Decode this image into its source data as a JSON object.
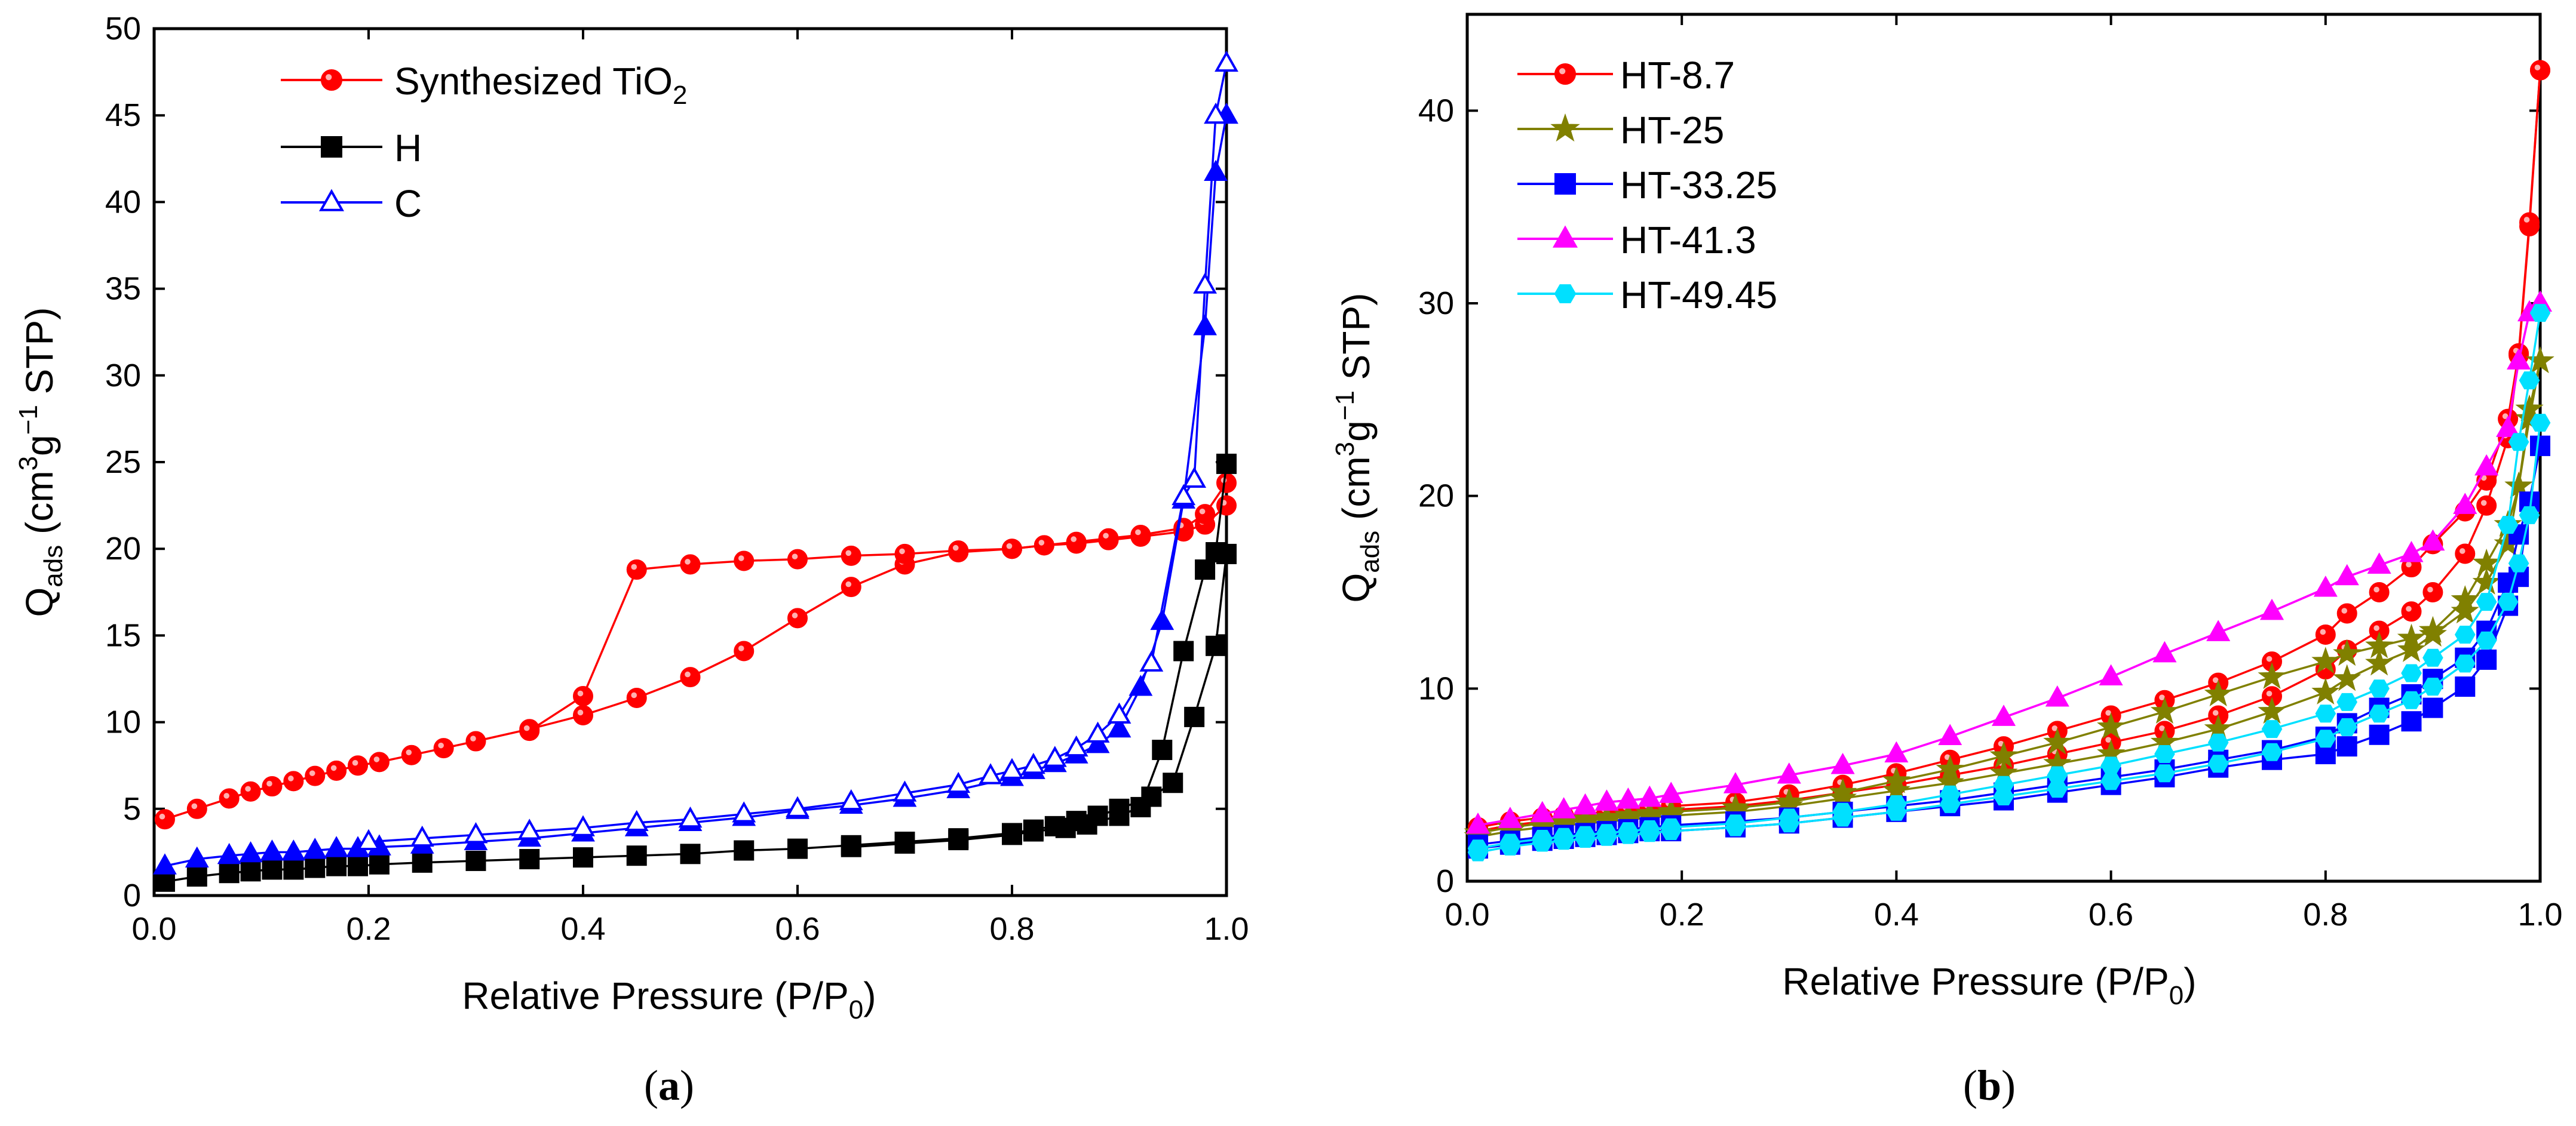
{
  "chart_data": [
    {
      "type": "line",
      "panel_label": "a",
      "xlabel": "Relative Pressure (P/P0)",
      "xlabel_main": "Relative Pressure (P/P",
      "xlabel_sub": "0",
      "xlabel_tail": ")",
      "ylabel": "Qads (cm3g−1 STP)",
      "ylabel_main": "Q",
      "ylabel_sub": "ads",
      "ylabel_mid": " (cm",
      "ylabel_sup1": "3",
      "ylabel_g": "g",
      "ylabel_sup2": "−1",
      "ylabel_tail": " STP)",
      "xlim": [
        0.0,
        1.0
      ],
      "ylim": [
        0,
        50
      ],
      "xticks": [
        "0.0",
        "0.2",
        "0.4",
        "0.6",
        "0.8",
        "1.0"
      ],
      "yticks": [
        "0",
        "5",
        "10",
        "15",
        "20",
        "25",
        "30",
        "35",
        "40",
        "45",
        "50"
      ],
      "legend_position": "top-left",
      "series": [
        {
          "name": "Synthesized TiO2",
          "legend_main": "Synthesized TiO",
          "legend_sub": "2",
          "color": "#ff0000",
          "marker": "circle",
          "adsorption": {
            "x": [
              0.01,
              0.04,
              0.07,
              0.09,
              0.11,
              0.13,
              0.15,
              0.17,
              0.19,
              0.21,
              0.24,
              0.27,
              0.3,
              0.35,
              0.4,
              0.45,
              0.5,
              0.55,
              0.6,
              0.65,
              0.7,
              0.75,
              0.8,
              0.83,
              0.86,
              0.89,
              0.92,
              0.96,
              0.98,
              1.0
            ],
            "y": [
              4.4,
              5.0,
              5.6,
              6.0,
              6.3,
              6.6,
              6.9,
              7.2,
              7.5,
              7.7,
              8.1,
              8.5,
              8.9,
              9.6,
              10.4,
              11.4,
              12.6,
              14.1,
              16.0,
              17.8,
              19.1,
              19.8,
              20.0,
              20.2,
              20.3,
              20.5,
              20.7,
              21.0,
              21.4,
              22.5
            ]
          },
          "desorption": {
            "x": [
              1.0,
              0.98,
              0.96,
              0.92,
              0.89,
              0.86,
              0.83,
              0.8,
              0.75,
              0.7,
              0.65,
              0.6,
              0.55,
              0.5,
              0.45,
              0.4,
              0.35
            ],
            "y": [
              23.8,
              22.0,
              21.2,
              20.8,
              20.6,
              20.4,
              20.2,
              20.0,
              19.9,
              19.7,
              19.6,
              19.4,
              19.3,
              19.1,
              18.8,
              11.5,
              9.5
            ]
          }
        },
        {
          "name": "H",
          "color": "#000000",
          "marker": "square",
          "adsorption": {
            "x": [
              0.01,
              0.04,
              0.07,
              0.09,
              0.11,
              0.13,
              0.15,
              0.17,
              0.19,
              0.21,
              0.25,
              0.3,
              0.35,
              0.4,
              0.45,
              0.5,
              0.55,
              0.6,
              0.65,
              0.7,
              0.75,
              0.8,
              0.82,
              0.84,
              0.86,
              0.88,
              0.9,
              0.93,
              0.95,
              0.97,
              0.99,
              1.0
            ],
            "y": [
              0.8,
              1.1,
              1.3,
              1.4,
              1.5,
              1.5,
              1.6,
              1.7,
              1.7,
              1.8,
              1.9,
              2.0,
              2.1,
              2.2,
              2.3,
              2.4,
              2.6,
              2.7,
              2.9,
              3.1,
              3.3,
              3.6,
              3.8,
              4.0,
              4.3,
              4.6,
              5.0,
              5.7,
              6.5,
              10.3,
              14.4,
              19.7
            ]
          },
          "desorption": {
            "x": [
              1.0,
              0.99,
              0.98,
              0.96,
              0.94,
              0.92,
              0.9,
              0.87,
              0.85,
              0.82,
              0.8,
              0.75,
              0.7,
              0.65
            ],
            "y": [
              24.9,
              19.8,
              18.8,
              14.1,
              8.4,
              5.1,
              4.6,
              4.1,
              3.9,
              3.7,
              3.5,
              3.2,
              3.0,
              2.8
            ]
          }
        },
        {
          "name": "C",
          "color": "#0000ff",
          "marker": "triangle",
          "adsorption": {
            "x": [
              0.01,
              0.04,
              0.07,
              0.09,
              0.11,
              0.13,
              0.15,
              0.17,
              0.19,
              0.21,
              0.25,
              0.3,
              0.35,
              0.4,
              0.45,
              0.5,
              0.55,
              0.6,
              0.65,
              0.7,
              0.75,
              0.8,
              0.82,
              0.84,
              0.86,
              0.88,
              0.9,
              0.92,
              0.94,
              0.96,
              0.98,
              0.99,
              1.0
            ],
            "y": [
              1.7,
              2.1,
              2.3,
              2.4,
              2.5,
              2.5,
              2.6,
              2.7,
              2.7,
              2.8,
              2.9,
              3.1,
              3.3,
              3.6,
              3.9,
              4.2,
              4.5,
              4.9,
              5.2,
              5.6,
              6.1,
              6.8,
              7.2,
              7.6,
              8.1,
              8.7,
              9.6,
              12.0,
              15.8,
              22.8,
              32.8,
              41.7,
              45.0
            ]
          },
          "desorption": {
            "x": [
              1.0,
              0.99,
              0.98,
              0.97,
              0.96,
              0.93,
              0.9,
              0.88,
              0.86,
              0.84,
              0.82,
              0.8,
              0.78,
              0.75,
              0.7,
              0.65,
              0.6,
              0.55,
              0.5,
              0.45,
              0.4,
              0.35,
              0.3,
              0.25,
              0.2
            ],
            "y": [
              48.0,
              45.0,
              35.2,
              24.0,
              23.0,
              13.4,
              10.4,
              9.3,
              8.5,
              7.9,
              7.5,
              7.2,
              6.9,
              6.4,
              5.9,
              5.4,
              5.0,
              4.7,
              4.4,
              4.2,
              3.9,
              3.7,
              3.5,
              3.3,
              3.1
            ]
          }
        }
      ]
    },
    {
      "type": "line",
      "panel_label": "b",
      "xlabel": "Relative Pressure (P/P0)",
      "xlabel_main": "Relative Pressure (P/P",
      "xlabel_sub": "0",
      "xlabel_tail": ")",
      "ylabel": "Qads (cm3g−1 STP)",
      "ylabel_main": "Q",
      "ylabel_sub": "ads",
      "ylabel_mid": " (cm",
      "ylabel_sup1": "3",
      "ylabel_g": "g",
      "ylabel_sup2": "−1",
      "ylabel_tail": " STP)",
      "xlim": [
        0.0,
        1.0
      ],
      "ylim": [
        0,
        45
      ],
      "xticks": [
        "0.0",
        "0.2",
        "0.4",
        "0.6",
        "0.8",
        "1.0"
      ],
      "yticks": [
        "0",
        "10",
        "20",
        "30",
        "40"
      ],
      "ytick_values": [
        0,
        10,
        20,
        30,
        40
      ],
      "legend_position": "top-left",
      "x": [
        0.01,
        0.04,
        0.07,
        0.09,
        0.11,
        0.13,
        0.15,
        0.17,
        0.19,
        0.25,
        0.3,
        0.35,
        0.4,
        0.45,
        0.5,
        0.55,
        0.6,
        0.65,
        0.7,
        0.75,
        0.8,
        0.82,
        0.85,
        0.88,
        0.9,
        0.93,
        0.95,
        0.97,
        0.98,
        0.99,
        1.0
      ],
      "series": [
        {
          "name": "HT-8.7",
          "color": "#ff0000",
          "marker": "circle",
          "adsorption": [
            2.6,
            2.9,
            3.1,
            3.2,
            3.3,
            3.4,
            3.5,
            3.6,
            3.7,
            3.9,
            4.2,
            4.6,
            5.0,
            5.5,
            6.0,
            6.6,
            7.2,
            7.8,
            8.6,
            9.6,
            11.0,
            12.0,
            13.0,
            14.0,
            15.0,
            17.0,
            19.5,
            23.0,
            27.3,
            34.0,
            42.1
          ],
          "desorption": [
            2.8,
            3.1,
            3.3,
            3.4,
            3.5,
            3.6,
            3.7,
            3.8,
            3.9,
            4.1,
            4.5,
            5.0,
            5.6,
            6.3,
            7.0,
            7.8,
            8.6,
            9.4,
            10.3,
            11.4,
            12.8,
            13.9,
            15.0,
            16.3,
            17.5,
            19.2,
            20.8,
            24.0,
            27.4,
            34.2,
            42.1
          ]
        },
        {
          "name": "HT-25",
          "color": "#808000",
          "marker": "star",
          "adsorption": [
            2.3,
            2.6,
            2.8,
            2.9,
            3.0,
            3.1,
            3.2,
            3.3,
            3.4,
            3.6,
            3.9,
            4.3,
            4.7,
            5.1,
            5.6,
            6.1,
            6.6,
            7.2,
            7.9,
            8.8,
            9.8,
            10.5,
            11.3,
            12.0,
            12.8,
            14.0,
            15.5,
            17.5,
            20.5,
            24.0,
            27.0
          ],
          "desorption": [
            2.5,
            2.8,
            3.0,
            3.1,
            3.2,
            3.3,
            3.4,
            3.5,
            3.6,
            3.8,
            4.1,
            4.6,
            5.2,
            5.8,
            6.5,
            7.2,
            8.0,
            8.8,
            9.7,
            10.6,
            11.4,
            11.8,
            12.2,
            12.6,
            13.0,
            14.6,
            16.5,
            18.5,
            20.5,
            24.5,
            27.0
          ]
        },
        {
          "name": "HT-33.25",
          "color": "#0000ff",
          "marker": "square",
          "adsorption": [
            1.7,
            1.9,
            2.1,
            2.2,
            2.3,
            2.4,
            2.5,
            2.6,
            2.6,
            2.8,
            3.0,
            3.3,
            3.6,
            3.9,
            4.2,
            4.6,
            5.0,
            5.4,
            5.9,
            6.3,
            6.6,
            7.0,
            7.6,
            8.3,
            9.0,
            10.1,
            11.5,
            14.3,
            15.8,
            19.7,
            22.6
          ],
          "desorption": [
            1.9,
            2.1,
            2.3,
            2.4,
            2.5,
            2.6,
            2.7,
            2.8,
            2.9,
            3.1,
            3.3,
            3.6,
            3.9,
            4.2,
            4.6,
            5.0,
            5.4,
            5.8,
            6.3,
            6.8,
            7.5,
            8.2,
            9.0,
            9.7,
            10.5,
            11.6,
            13.0,
            15.5,
            18.0,
            19.7,
            22.6
          ]
        },
        {
          "name": "HT-41.3",
          "color": "#ff00ff",
          "marker": "triangle",
          "adsorption": [
            2.9,
            3.2,
            3.5,
            3.7,
            3.9,
            4.1,
            4.2,
            4.3,
            4.5,
            5.0,
            5.5,
            6.0,
            6.6,
            7.5,
            8.5,
            9.5,
            10.6,
            11.8,
            12.9,
            14.0,
            15.2,
            15.8,
            16.4,
            17.0,
            17.6,
            19.5,
            21.5,
            23.5,
            27.0,
            29.5,
            30.0
          ],
          "desorption": [
            2.9,
            3.2,
            3.5,
            3.7,
            3.9,
            4.1,
            4.2,
            4.3,
            4.5,
            5.0,
            5.5,
            6.0,
            6.6,
            7.5,
            8.5,
            9.5,
            10.6,
            11.8,
            12.9,
            14.0,
            15.2,
            15.8,
            16.4,
            17.0,
            17.6,
            19.5,
            21.5,
            23.5,
            27.0,
            29.5,
            30.0
          ]
        },
        {
          "name": "HT-49.45",
          "color": "#00e0ff",
          "marker": "hexagon",
          "adsorption": [
            1.5,
            1.8,
            2.0,
            2.1,
            2.2,
            2.3,
            2.4,
            2.5,
            2.6,
            2.8,
            3.0,
            3.3,
            3.6,
            4.0,
            4.4,
            4.8,
            5.2,
            5.6,
            6.1,
            6.7,
            7.4,
            8.0,
            8.7,
            9.4,
            10.1,
            11.3,
            12.5,
            14.5,
            16.5,
            19.0,
            23.8
          ],
          "desorption": [
            1.7,
            2.0,
            2.2,
            2.3,
            2.4,
            2.5,
            2.6,
            2.7,
            2.8,
            3.0,
            3.3,
            3.6,
            4.0,
            4.5,
            5.0,
            5.5,
            6.0,
            6.6,
            7.2,
            7.9,
            8.7,
            9.3,
            10.0,
            10.8,
            11.6,
            12.8,
            14.5,
            18.5,
            22.8,
            26.0,
            29.5
          ]
        }
      ]
    }
  ]
}
